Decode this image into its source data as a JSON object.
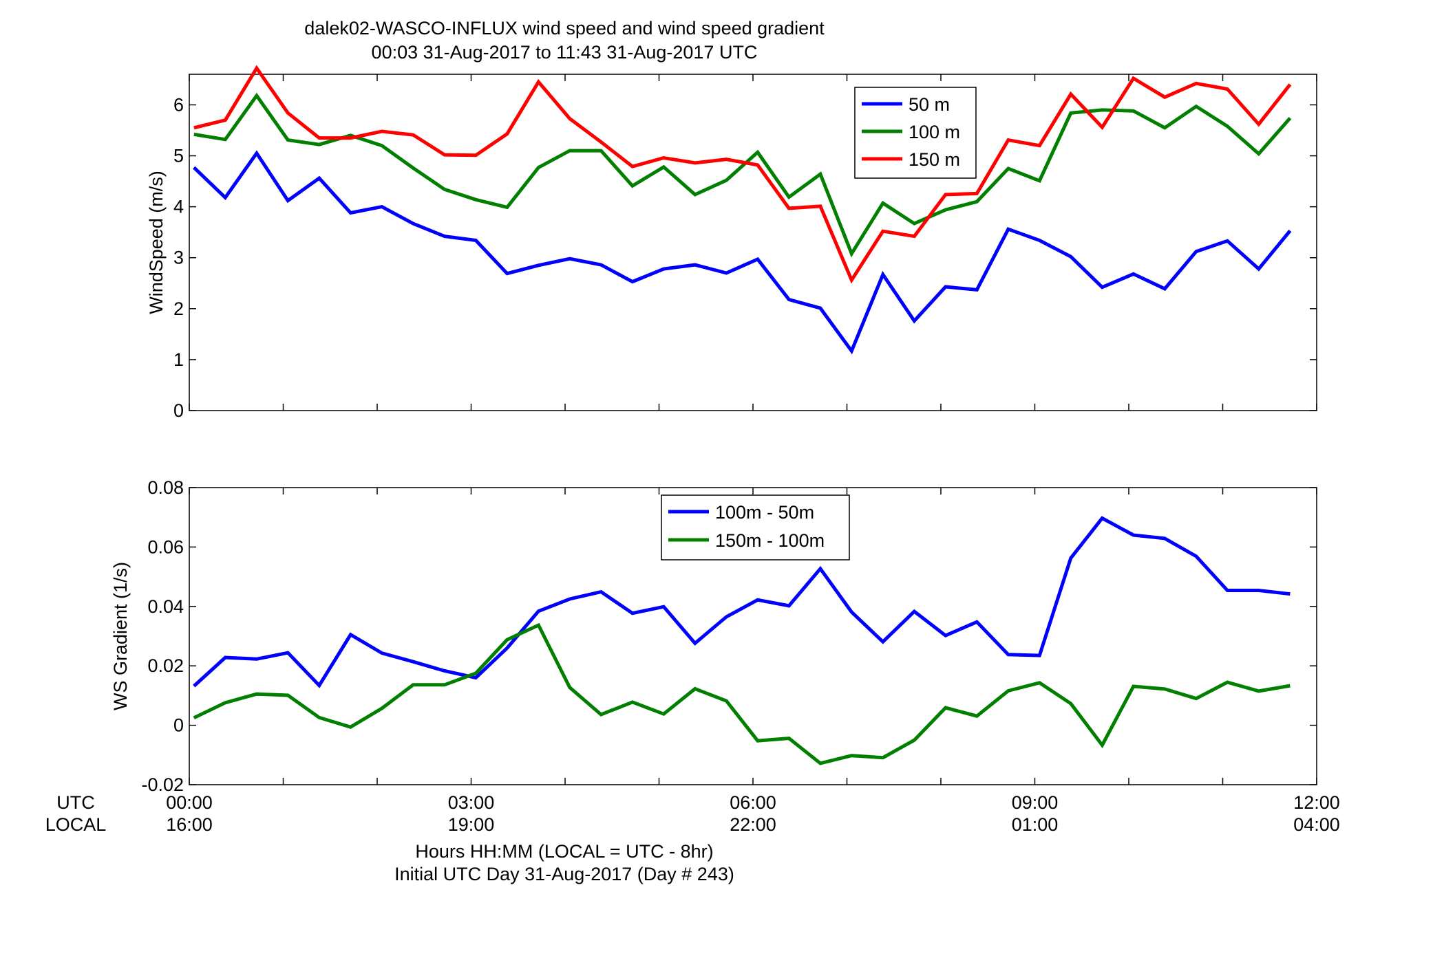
{
  "figure": {
    "title_line1": "dalek02-WASCO-INFLUX  wind speed and wind speed gradient",
    "title_line2": "00:03 31-Aug-2017 to 11:43 31-Aug-2017  UTC",
    "xlabel_line1": "Hours HH:MM  (LOCAL = UTC - 8hr)",
    "xlabel_line2": "Initial UTC Day 31-Aug-2017 (Day # 243)",
    "utc_row_label": "UTC",
    "local_row_label": "LOCAL",
    "utc_ticks": [
      "00:00",
      "03:00",
      "06:00",
      "09:00",
      "12:00"
    ],
    "local_ticks": [
      "16:00",
      "19:00",
      "22:00",
      "01:00",
      "04:00"
    ]
  },
  "chart_data": [
    {
      "type": "line",
      "ylabel": "WindSpeed (m/s)",
      "xlim": [
        0,
        12
      ],
      "ylim": [
        0,
        6.6
      ],
      "yticks": [
        0,
        1,
        2,
        3,
        4,
        5,
        6
      ],
      "x_unit": "hours UTC",
      "x": [
        0.05,
        0.383,
        0.717,
        1.05,
        1.383,
        1.717,
        2.05,
        2.383,
        2.717,
        3.05,
        3.383,
        3.717,
        4.05,
        4.383,
        4.717,
        5.05,
        5.383,
        5.717,
        6.05,
        6.383,
        6.717,
        7.05,
        7.383,
        7.717,
        8.05,
        8.383,
        8.717,
        9.05,
        9.383,
        9.717,
        10.05,
        10.383,
        10.717,
        11.05,
        11.383,
        11.717
      ],
      "legend_position": "upper-center",
      "series": [
        {
          "name": "50 m",
          "color": "#0000ff",
          "values": [
            4.77,
            4.18,
            5.05,
            4.12,
            4.56,
            3.88,
            4.0,
            3.67,
            3.42,
            3.34,
            2.69,
            2.85,
            2.98,
            2.86,
            2.53,
            2.78,
            2.86,
            2.7,
            2.97,
            2.18,
            2.01,
            1.17,
            2.67,
            1.76,
            2.43,
            2.37,
            3.56,
            3.34,
            3.02,
            2.42,
            2.68,
            2.39,
            3.12,
            3.33,
            2.78,
            3.53
          ]
        },
        {
          "name": "100 m",
          "color": "#007f00",
          "values": [
            5.42,
            5.32,
            6.18,
            5.31,
            5.22,
            5.4,
            5.2,
            4.76,
            4.34,
            4.14,
            3.99,
            4.77,
            5.1,
            5.1,
            4.41,
            4.78,
            4.24,
            4.52,
            5.07,
            4.19,
            4.64,
            3.08,
            4.07,
            3.67,
            3.94,
            4.1,
            4.75,
            4.51,
            5.84,
            5.9,
            5.88,
            5.55,
            5.97,
            5.58,
            5.04,
            5.74
          ]
        },
        {
          "name": "150 m",
          "color": "#ff0000",
          "values": [
            5.55,
            5.7,
            6.72,
            5.84,
            5.35,
            5.35,
            5.48,
            5.41,
            5.02,
            5.01,
            5.43,
            6.45,
            5.73,
            5.27,
            4.79,
            4.96,
            4.86,
            4.93,
            4.82,
            3.97,
            4.01,
            2.56,
            3.52,
            3.42,
            4.24,
            4.26,
            5.31,
            5.2,
            6.21,
            5.56,
            6.52,
            6.15,
            6.42,
            6.31,
            5.62,
            6.4
          ]
        }
      ]
    },
    {
      "type": "line",
      "ylabel": "WS Gradient (1/s)",
      "xlim": [
        0,
        12
      ],
      "ylim": [
        -0.02,
        0.08
      ],
      "yticks": [
        -0.02,
        0,
        0.02,
        0.04,
        0.06,
        0.08
      ],
      "ytick_labels": [
        "-0.02",
        "0",
        "0.02",
        "0.04",
        "0.06",
        "0.08"
      ],
      "x_unit": "hours UTC",
      "x": [
        0.05,
        0.383,
        0.717,
        1.05,
        1.383,
        1.717,
        2.05,
        2.383,
        2.717,
        3.05,
        3.383,
        3.717,
        4.05,
        4.383,
        4.717,
        5.05,
        5.383,
        5.717,
        6.05,
        6.383,
        6.717,
        7.05,
        7.383,
        7.717,
        8.05,
        8.383,
        8.717,
        9.05,
        9.383,
        9.717,
        10.05,
        10.383,
        10.717,
        11.05,
        11.383,
        11.717
      ],
      "legend_position": "upper-center",
      "series": [
        {
          "name": "100m - 50m",
          "color": "#0000ff",
          "values": [
            0.0132,
            0.0228,
            0.0223,
            0.0244,
            0.0134,
            0.0305,
            0.0243,
            0.0214,
            0.0183,
            0.016,
            0.026,
            0.0384,
            0.0425,
            0.0449,
            0.0377,
            0.0399,
            0.0276,
            0.0365,
            0.0422,
            0.0402,
            0.0527,
            0.0381,
            0.0281,
            0.0383,
            0.0302,
            0.0348,
            0.0238,
            0.0235,
            0.0563,
            0.0697,
            0.064,
            0.0629,
            0.0569,
            0.0454,
            0.0454,
            0.0442
          ]
        },
        {
          "name": "150m - 100m",
          "color": "#007f00",
          "values": [
            0.0025,
            0.0076,
            0.0105,
            0.0101,
            0.0026,
            -0.0006,
            0.0057,
            0.0136,
            0.0136,
            0.0175,
            0.0288,
            0.0337,
            0.0127,
            0.0036,
            0.0078,
            0.0038,
            0.0123,
            0.0082,
            -0.0052,
            -0.0044,
            -0.0128,
            -0.0102,
            -0.0109,
            -0.005,
            0.0059,
            0.0031,
            0.0116,
            0.0143,
            0.0073,
            -0.0067,
            0.0131,
            0.0122,
            0.009,
            0.0145,
            0.0115,
            0.0133
          ]
        }
      ]
    }
  ]
}
